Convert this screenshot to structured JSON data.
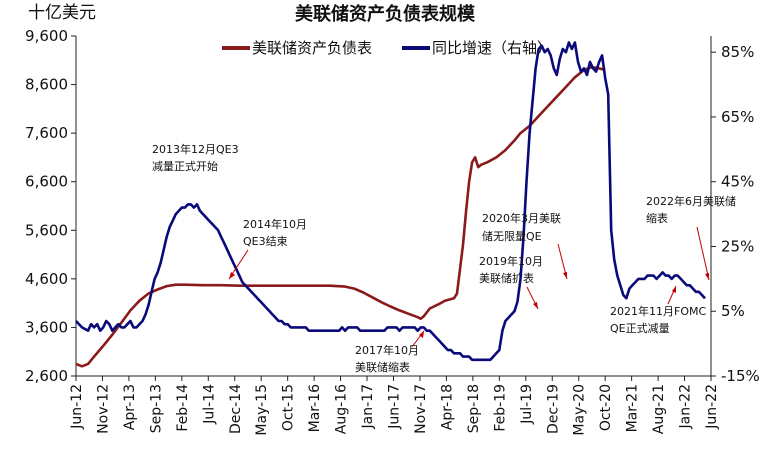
{
  "chart_data": {
    "type": "line",
    "title": "美联储资产负债表规模",
    "left_unit": "十亿美元",
    "right_unit": "",
    "x_labels": [
      "Jun-12",
      "Nov-12",
      "Apr-13",
      "Sep-13",
      "Feb-14",
      "Jul-14",
      "Dec-14",
      "May-15",
      "Oct-15",
      "Mar-16",
      "Aug-16",
      "Jan-17",
      "Jun-17",
      "Nov-17",
      "Apr-18",
      "Sep-18",
      "Feb-19",
      "Jul-19",
      "Dec-19",
      "May-20",
      "Oct-20",
      "Mar-21",
      "Aug-21",
      "Jan-22",
      "Jun-22"
    ],
    "left_axis": {
      "min": 2600,
      "max": 9600,
      "ticks": [
        "2,600",
        "3,600",
        "4,600",
        "5,600",
        "6,600",
        "7,600",
        "8,600",
        "9,600"
      ]
    },
    "right_axis": {
      "min": -15,
      "max": 90,
      "ticks": [
        "-15%",
        "5%",
        "25%",
        "45%",
        "65%",
        "85%"
      ]
    },
    "series": [
      {
        "name": "美联储资产负债表",
        "axis": "left",
        "color": "#8b1a1a",
        "points": [
          [
            0,
            2850
          ],
          [
            2,
            2800
          ],
          [
            4,
            2850
          ],
          [
            6,
            3000
          ],
          [
            9,
            3220
          ],
          [
            12,
            3450
          ],
          [
            15,
            3700
          ],
          [
            18,
            3950
          ],
          [
            21,
            4150
          ],
          [
            24,
            4300
          ],
          [
            27,
            4380
          ],
          [
            30,
            4450
          ],
          [
            33,
            4480
          ],
          [
            36,
            4480
          ],
          [
            42,
            4470
          ],
          [
            48,
            4470
          ],
          [
            54,
            4460
          ],
          [
            60,
            4460
          ],
          [
            66,
            4460
          ],
          [
            72,
            4460
          ],
          [
            78,
            4460
          ],
          [
            84,
            4460
          ],
          [
            89,
            4440
          ],
          [
            92,
            4400
          ],
          [
            95,
            4320
          ],
          [
            98,
            4220
          ],
          [
            101,
            4120
          ],
          [
            104,
            4030
          ],
          [
            107,
            3950
          ],
          [
            110,
            3880
          ],
          [
            113,
            3810
          ],
          [
            114,
            3780
          ],
          [
            115,
            3830
          ],
          [
            117,
            3990
          ],
          [
            120,
            4080
          ],
          [
            122,
            4150
          ],
          [
            125,
            4200
          ],
          [
            126,
            4300
          ],
          [
            127,
            4800
          ],
          [
            128,
            5300
          ],
          [
            129,
            6000
          ],
          [
            130,
            6600
          ],
          [
            131,
            7000
          ],
          [
            132,
            7100
          ],
          [
            133,
            6900
          ],
          [
            134,
            6950
          ],
          [
            136,
            7000
          ],
          [
            139,
            7100
          ],
          [
            142,
            7250
          ],
          [
            145,
            7450
          ],
          [
            147,
            7600
          ],
          [
            150,
            7750
          ],
          [
            153,
            7950
          ],
          [
            156,
            8150
          ],
          [
            159,
            8350
          ],
          [
            162,
            8550
          ],
          [
            165,
            8750
          ],
          [
            168,
            8900
          ],
          [
            170,
            8950
          ],
          [
            172,
            8950
          ],
          [
            175,
            8900
          ]
        ]
      },
      {
        "name": "同比增速（右轴）",
        "axis": "right",
        "color": "#0a0a7a",
        "points": [
          [
            0,
            2
          ],
          [
            2,
            0
          ],
          [
            4,
            -1
          ],
          [
            5,
            1
          ],
          [
            6,
            0
          ],
          [
            7,
            1
          ],
          [
            8,
            -1
          ],
          [
            9,
            0
          ],
          [
            10,
            2
          ],
          [
            11,
            1
          ],
          [
            12,
            -1
          ],
          [
            13,
            0
          ],
          [
            14,
            1
          ],
          [
            15,
            0
          ],
          [
            16,
            0
          ],
          [
            17,
            1
          ],
          [
            18,
            2
          ],
          [
            19,
            0
          ],
          [
            20,
            0
          ],
          [
            21,
            1
          ],
          [
            22,
            2
          ],
          [
            23,
            4
          ],
          [
            24,
            7
          ],
          [
            25,
            11
          ],
          [
            26,
            15
          ],
          [
            27,
            17
          ],
          [
            28,
            20
          ],
          [
            29,
            24
          ],
          [
            30,
            28
          ],
          [
            31,
            31
          ],
          [
            32,
            33
          ],
          [
            33,
            35
          ],
          [
            34,
            36
          ],
          [
            35,
            37
          ],
          [
            36,
            37
          ],
          [
            37,
            38
          ],
          [
            38,
            38
          ],
          [
            39,
            37
          ],
          [
            40,
            38
          ],
          [
            41,
            36
          ],
          [
            42,
            35
          ],
          [
            43,
            34
          ],
          [
            44,
            33
          ],
          [
            45,
            32
          ],
          [
            46,
            31
          ],
          [
            47,
            30
          ],
          [
            48,
            28
          ],
          [
            49,
            26
          ],
          [
            50,
            24
          ],
          [
            51,
            22
          ],
          [
            52,
            20
          ],
          [
            53,
            18
          ],
          [
            54,
            16
          ],
          [
            55,
            14
          ],
          [
            56,
            13
          ],
          [
            57,
            12
          ],
          [
            58,
            11
          ],
          [
            59,
            10
          ],
          [
            60,
            9
          ],
          [
            61,
            8
          ],
          [
            62,
            7
          ],
          [
            63,
            6
          ],
          [
            64,
            5
          ],
          [
            65,
            4
          ],
          [
            66,
            3
          ],
          [
            67,
            2
          ],
          [
            68,
            2
          ],
          [
            69,
            1
          ],
          [
            70,
            1
          ],
          [
            71,
            0
          ],
          [
            72,
            0
          ],
          [
            73,
            0
          ],
          [
            74,
            0
          ],
          [
            75,
            0
          ],
          [
            76,
            0
          ],
          [
            77,
            -1
          ],
          [
            78,
            -1
          ],
          [
            79,
            -1
          ],
          [
            80,
            -1
          ],
          [
            81,
            -1
          ],
          [
            82,
            -1
          ],
          [
            83,
            -1
          ],
          [
            84,
            -1
          ],
          [
            85,
            -1
          ],
          [
            86,
            -1
          ],
          [
            87,
            -1
          ],
          [
            88,
            0
          ],
          [
            89,
            -1
          ],
          [
            90,
            0
          ],
          [
            91,
            0
          ],
          [
            92,
            0
          ],
          [
            93,
            0
          ],
          [
            94,
            -1
          ],
          [
            95,
            -1
          ],
          [
            96,
            -1
          ],
          [
            97,
            -1
          ],
          [
            98,
            -1
          ],
          [
            99,
            -1
          ],
          [
            100,
            -1
          ],
          [
            101,
            -1
          ],
          [
            102,
            -1
          ],
          [
            103,
            0
          ],
          [
            104,
            0
          ],
          [
            105,
            0
          ],
          [
            106,
            0
          ],
          [
            107,
            -1
          ],
          [
            108,
            0
          ],
          [
            109,
            0
          ],
          [
            110,
            0
          ],
          [
            111,
            0
          ],
          [
            112,
            0
          ],
          [
            113,
            -1
          ],
          [
            114,
            0
          ],
          [
            115,
            0
          ],
          [
            116,
            -1
          ],
          [
            117,
            -1
          ],
          [
            118,
            -2
          ],
          [
            119,
            -3
          ],
          [
            120,
            -4
          ],
          [
            121,
            -5
          ],
          [
            122,
            -6
          ],
          [
            123,
            -7
          ],
          [
            124,
            -7
          ],
          [
            125,
            -8
          ],
          [
            126,
            -8
          ],
          [
            127,
            -8
          ],
          [
            128,
            -9
          ],
          [
            129,
            -9
          ],
          [
            130,
            -9
          ],
          [
            131,
            -10
          ],
          [
            132,
            -10
          ],
          [
            133,
            -10
          ],
          [
            134,
            -10
          ],
          [
            135,
            -10
          ],
          [
            136,
            -10
          ],
          [
            137,
            -10
          ],
          [
            138,
            -9
          ],
          [
            139,
            -8
          ],
          [
            140,
            -7
          ],
          [
            141,
            -1
          ],
          [
            142,
            2
          ],
          [
            143,
            3
          ],
          [
            144,
            4
          ],
          [
            145,
            5
          ],
          [
            146,
            8
          ],
          [
            147,
            15
          ],
          [
            148,
            28
          ],
          [
            149,
            45
          ],
          [
            150,
            60
          ],
          [
            151,
            70
          ],
          [
            152,
            80
          ],
          [
            153,
            86
          ],
          [
            154,
            87
          ],
          [
            155,
            85
          ],
          [
            156,
            86
          ],
          [
            157,
            84
          ],
          [
            158,
            80
          ],
          [
            159,
            78
          ],
          [
            160,
            83
          ],
          [
            161,
            86
          ],
          [
            162,
            85
          ],
          [
            163,
            88
          ],
          [
            164,
            86
          ],
          [
            165,
            88
          ],
          [
            166,
            82
          ],
          [
            167,
            79
          ],
          [
            168,
            80
          ],
          [
            169,
            78
          ],
          [
            170,
            82
          ],
          [
            171,
            80
          ],
          [
            172,
            79
          ],
          [
            173,
            82
          ],
          [
            174,
            84
          ],
          [
            175,
            77
          ],
          [
            176,
            72
          ],
          [
            177,
            30
          ],
          [
            178,
            21
          ],
          [
            179,
            16
          ],
          [
            180,
            13
          ],
          [
            181,
            10
          ],
          [
            182,
            9
          ],
          [
            183,
            12
          ],
          [
            184,
            13
          ],
          [
            185,
            14
          ],
          [
            186,
            15
          ],
          [
            187,
            15
          ],
          [
            188,
            15
          ],
          [
            189,
            16
          ],
          [
            190,
            16
          ],
          [
            191,
            16
          ],
          [
            192,
            15
          ],
          [
            193,
            16
          ],
          [
            194,
            17
          ],
          [
            195,
            16
          ],
          [
            196,
            16
          ],
          [
            197,
            15
          ],
          [
            198,
            16
          ],
          [
            199,
            16
          ],
          [
            200,
            15
          ],
          [
            201,
            14
          ],
          [
            202,
            13
          ],
          [
            203,
            13
          ],
          [
            204,
            12
          ],
          [
            205,
            11
          ],
          [
            206,
            11
          ],
          [
            207,
            10
          ],
          [
            208,
            9
          ]
        ]
      }
    ],
    "x_domain": [
      0,
      210
    ],
    "annotations": [
      {
        "lines": [
          "2013年12月QE3",
          "减量正式开始"
        ]
      },
      {
        "lines": [
          "2014年10月",
          "QE3结束"
        ]
      },
      {
        "lines": [
          "2017年10月",
          "美联储缩表"
        ]
      },
      {
        "lines": [
          "2019年10月",
          "美联储扩表"
        ]
      },
      {
        "lines": [
          "2020年3月美联",
          "储无限量QE"
        ]
      },
      {
        "lines": [
          "2021年11月FOMC",
          "QE正式减量"
        ]
      },
      {
        "lines": [
          "2022年6月美联储",
          "缩表"
        ]
      }
    ]
  }
}
